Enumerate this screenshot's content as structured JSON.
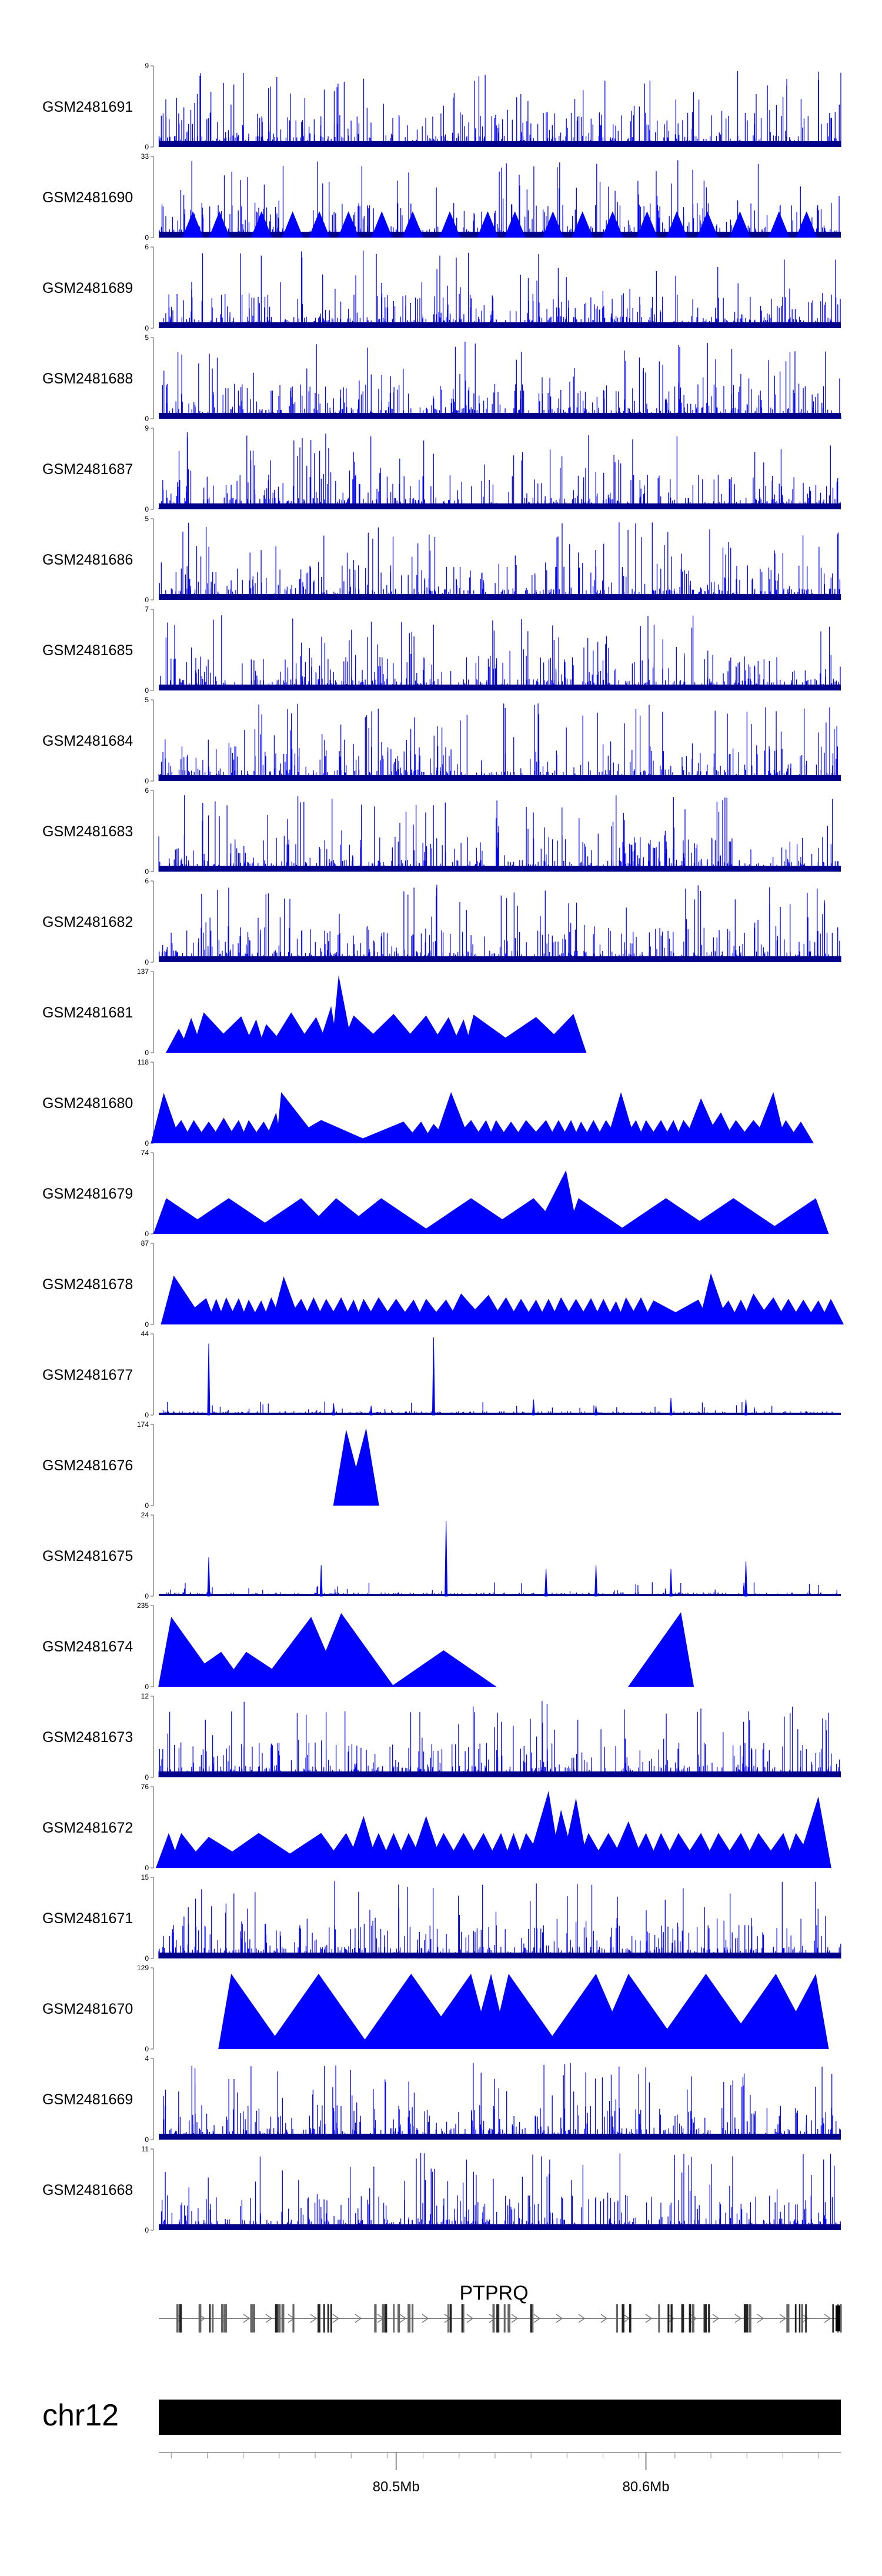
{
  "chart_data": {
    "type": "genome-track-area",
    "chromosome": "chr12",
    "gene": "PTPRQ",
    "x_unit": "Mb",
    "xlim": [
      80.405,
      80.678
    ],
    "x_ticks": [
      80.5,
      80.6
    ],
    "x_tick_labels": [
      "80.5Mb",
      "80.6Mb"
    ],
    "series_color": "#0000ff",
    "tracks": [
      {
        "name": "GSM2481691",
        "ymax": 9,
        "style": "dense",
        "seed": 11,
        "peaks": []
      },
      {
        "name": "GSM2481690",
        "ymax": 33,
        "style": "sparse_dense",
        "seed": 12,
        "peaks": []
      },
      {
        "name": "GSM2481689",
        "ymax": 6,
        "style": "dense",
        "seed": 13,
        "peaks": []
      },
      {
        "name": "GSM2481688",
        "ymax": 5,
        "style": "dense",
        "seed": 14,
        "peaks": []
      },
      {
        "name": "GSM2481687",
        "ymax": 9,
        "style": "dense",
        "seed": 15,
        "peaks": []
      },
      {
        "name": "GSM2481686",
        "ymax": 5,
        "style": "dense",
        "seed": 16,
        "peaks": []
      },
      {
        "name": "GSM2481685",
        "ymax": 7,
        "style": "dense",
        "seed": 17,
        "peaks": []
      },
      {
        "name": "GSM2481684",
        "ymax": 5,
        "style": "dense",
        "seed": 18,
        "peaks": []
      },
      {
        "name": "GSM2481683",
        "ymax": 6,
        "style": "dense",
        "seed": 19,
        "peaks": []
      },
      {
        "name": "GSM2481682",
        "ymax": 6,
        "style": "dense",
        "seed": 20,
        "peaks": []
      },
      {
        "name": "GSM2481681",
        "ymax": 137,
        "style": "tri",
        "seed": 21,
        "peaks": [
          [
            80.413,
            0.31
          ],
          [
            80.418,
            0.45
          ],
          [
            80.423,
            0.52
          ],
          [
            80.438,
            0.47
          ],
          [
            80.444,
            0.43
          ],
          [
            80.448,
            0.37
          ],
          [
            80.458,
            0.52
          ],
          [
            80.468,
            0.46
          ],
          [
            80.474,
            0.6
          ],
          [
            80.477,
            1.0
          ],
          [
            80.483,
            0.48
          ],
          [
            80.499,
            0.5
          ],
          [
            80.512,
            0.48
          ],
          [
            80.521,
            0.46
          ],
          [
            80.527,
            0.43
          ],
          [
            80.531,
            0.49
          ],
          [
            80.556,
            0.46
          ],
          [
            80.571,
            0.5
          ]
        ]
      },
      {
        "name": "GSM2481680",
        "ymax": 118,
        "style": "tri",
        "seed": 22,
        "peaks": [
          [
            80.407,
            0.65
          ],
          [
            80.414,
            0.3
          ],
          [
            80.419,
            0.3
          ],
          [
            80.425,
            0.28
          ],
          [
            80.431,
            0.33
          ],
          [
            80.437,
            0.3
          ],
          [
            80.441,
            0.3
          ],
          [
            80.447,
            0.28
          ],
          [
            80.452,
            0.4
          ],
          [
            80.454,
            0.66
          ],
          [
            80.47,
            0.3
          ],
          [
            80.503,
            0.28
          ],
          [
            80.51,
            0.28
          ],
          [
            80.515,
            0.25
          ],
          [
            80.522,
            0.66
          ],
          [
            80.53,
            0.3
          ],
          [
            80.536,
            0.3
          ],
          [
            80.54,
            0.3
          ],
          [
            80.546,
            0.28
          ],
          [
            80.552,
            0.3
          ],
          [
            80.56,
            0.3
          ],
          [
            80.565,
            0.3
          ],
          [
            80.57,
            0.3
          ],
          [
            80.574,
            0.28
          ],
          [
            80.579,
            0.3
          ],
          [
            80.584,
            0.3
          ],
          [
            80.59,
            0.66
          ],
          [
            80.596,
            0.3
          ],
          [
            80.6,
            0.3
          ],
          [
            80.606,
            0.3
          ],
          [
            80.611,
            0.3
          ],
          [
            80.615,
            0.3
          ],
          [
            80.622,
            0.58
          ],
          [
            80.63,
            0.4
          ],
          [
            80.636,
            0.3
          ],
          [
            80.643,
            0.3
          ],
          [
            80.651,
            0.66
          ],
          [
            80.656,
            0.3
          ],
          [
            80.662,
            0.28
          ]
        ]
      },
      {
        "name": "GSM2481679",
        "ymax": 74,
        "style": "tri",
        "seed": 23,
        "peaks": [
          [
            80.408,
            0.46
          ],
          [
            80.433,
            0.46
          ],
          [
            80.462,
            0.46
          ],
          [
            80.476,
            0.46
          ],
          [
            80.494,
            0.46
          ],
          [
            80.53,
            0.46
          ],
          [
            80.555,
            0.46
          ],
          [
            80.568,
            0.82
          ],
          [
            80.573,
            0.46
          ],
          [
            80.608,
            0.46
          ],
          [
            80.635,
            0.46
          ],
          [
            80.668,
            0.46
          ]
        ]
      },
      {
        "name": "GSM2481678",
        "ymax": 87,
        "style": "tri",
        "seed": 24,
        "peaks": [
          [
            80.411,
            0.63
          ],
          [
            80.424,
            0.34
          ],
          [
            80.428,
            0.33
          ],
          [
            80.432,
            0.35
          ],
          [
            80.437,
            0.34
          ],
          [
            80.441,
            0.32
          ],
          [
            80.446,
            0.31
          ],
          [
            80.45,
            0.35
          ],
          [
            80.455,
            0.62
          ],
          [
            80.462,
            0.33
          ],
          [
            80.467,
            0.35
          ],
          [
            80.472,
            0.33
          ],
          [
            80.478,
            0.35
          ],
          [
            80.483,
            0.32
          ],
          [
            80.487,
            0.33
          ],
          [
            80.493,
            0.35
          ],
          [
            80.5,
            0.33
          ],
          [
            80.507,
            0.32
          ],
          [
            80.512,
            0.33
          ],
          [
            80.52,
            0.32
          ],
          [
            80.526,
            0.4
          ],
          [
            80.537,
            0.38
          ],
          [
            80.544,
            0.35
          ],
          [
            80.55,
            0.33
          ],
          [
            80.556,
            0.32
          ],
          [
            80.561,
            0.33
          ],
          [
            80.566,
            0.35
          ],
          [
            80.572,
            0.33
          ],
          [
            80.578,
            0.34
          ],
          [
            80.583,
            0.33
          ],
          [
            80.588,
            0.3
          ],
          [
            80.592,
            0.35
          ],
          [
            80.598,
            0.35
          ],
          [
            80.603,
            0.31
          ],
          [
            80.621,
            0.32
          ],
          [
            80.626,
            0.66
          ],
          [
            80.633,
            0.31
          ],
          [
            80.638,
            0.32
          ],
          [
            80.643,
            0.4
          ],
          [
            80.651,
            0.35
          ],
          [
            80.657,
            0.33
          ],
          [
            80.663,
            0.32
          ],
          [
            80.669,
            0.31
          ],
          [
            80.674,
            0.33
          ]
        ]
      },
      {
        "name": "GSM2481677",
        "ymax": 44,
        "style": "spiky",
        "seed": 25,
        "peaks": [
          [
            80.425,
            0.92
          ],
          [
            80.515,
            1.0
          ],
          [
            80.475,
            0.15
          ],
          [
            80.555,
            0.2
          ],
          [
            80.61,
            0.22
          ],
          [
            80.64,
            0.2
          ],
          [
            80.49,
            0.12
          ],
          [
            80.58,
            0.12
          ]
        ]
      },
      {
        "name": "GSM2481676",
        "ymax": 174,
        "style": "tri",
        "seed": 26,
        "peaks": [
          [
            80.48,
            0.98
          ],
          [
            80.488,
            1.0
          ]
        ]
      },
      {
        "name": "GSM2481675",
        "ymax": 24,
        "style": "spiky",
        "seed": 27,
        "peaks": [
          [
            80.52,
            0.97
          ],
          [
            80.425,
            0.5
          ],
          [
            80.47,
            0.4
          ],
          [
            80.64,
            0.45
          ],
          [
            80.58,
            0.4
          ],
          [
            80.56,
            0.35
          ],
          [
            80.61,
            0.35
          ]
        ]
      },
      {
        "name": "GSM2481674",
        "ymax": 235,
        "style": "tri",
        "seed": 27,
        "peaks": [
          [
            80.41,
            0.9
          ],
          [
            80.43,
            0.45
          ],
          [
            80.44,
            0.45
          ],
          [
            80.466,
            0.9
          ],
          [
            80.478,
            0.95
          ],
          [
            80.519,
            0.47
          ],
          [
            80.614,
            0.96
          ]
        ]
      },
      {
        "name": "GSM2481673",
        "ymax": 12,
        "style": "dense",
        "seed": 29,
        "peaks": []
      },
      {
        "name": "GSM2481672",
        "ymax": 76,
        "style": "tri",
        "seed": 30,
        "peaks": [
          [
            80.409,
            0.45
          ],
          [
            80.414,
            0.45
          ],
          [
            80.425,
            0.4
          ],
          [
            80.445,
            0.45
          ],
          [
            80.47,
            0.45
          ],
          [
            80.48,
            0.45
          ],
          [
            80.487,
            0.67
          ],
          [
            80.493,
            0.45
          ],
          [
            80.499,
            0.45
          ],
          [
            80.505,
            0.45
          ],
          [
            80.512,
            0.67
          ],
          [
            80.519,
            0.45
          ],
          [
            80.527,
            0.45
          ],
          [
            80.535,
            0.45
          ],
          [
            80.542,
            0.45
          ],
          [
            80.547,
            0.45
          ],
          [
            80.552,
            0.45
          ],
          [
            80.561,
            0.99
          ],
          [
            80.566,
            0.75
          ],
          [
            80.572,
            0.9
          ],
          [
            80.577,
            0.45
          ],
          [
            80.585,
            0.45
          ],
          [
            80.593,
            0.6
          ],
          [
            80.6,
            0.45
          ],
          [
            80.606,
            0.45
          ],
          [
            80.613,
            0.45
          ],
          [
            80.622,
            0.45
          ],
          [
            80.629,
            0.45
          ],
          [
            80.638,
            0.45
          ],
          [
            80.645,
            0.45
          ],
          [
            80.655,
            0.45
          ],
          [
            80.66,
            0.45
          ],
          [
            80.669,
            0.92
          ]
        ]
      },
      {
        "name": "GSM2481671",
        "ymax": 15,
        "style": "dense",
        "seed": 31,
        "peaks": []
      },
      {
        "name": "GSM2481670",
        "ymax": 129,
        "style": "tri",
        "seed": 32,
        "peaks": [
          [
            80.434,
            0.97
          ],
          [
            80.469,
            0.97
          ],
          [
            80.506,
            0.97
          ],
          [
            80.538,
            0.97
          ],
          [
            80.545,
            0.97
          ],
          [
            80.53,
            0.97
          ],
          [
            80.58,
            0.97
          ],
          [
            80.593,
            0.97
          ],
          [
            80.624,
            0.97
          ],
          [
            80.652,
            0.97
          ],
          [
            80.668,
            0.97
          ]
        ]
      },
      {
        "name": "GSM2481669",
        "ymax": 4,
        "style": "dense",
        "seed": 33,
        "peaks": []
      },
      {
        "name": "GSM2481668",
        "ymax": 11,
        "style": "dense",
        "seed": 34,
        "peaks": []
      }
    ]
  }
}
